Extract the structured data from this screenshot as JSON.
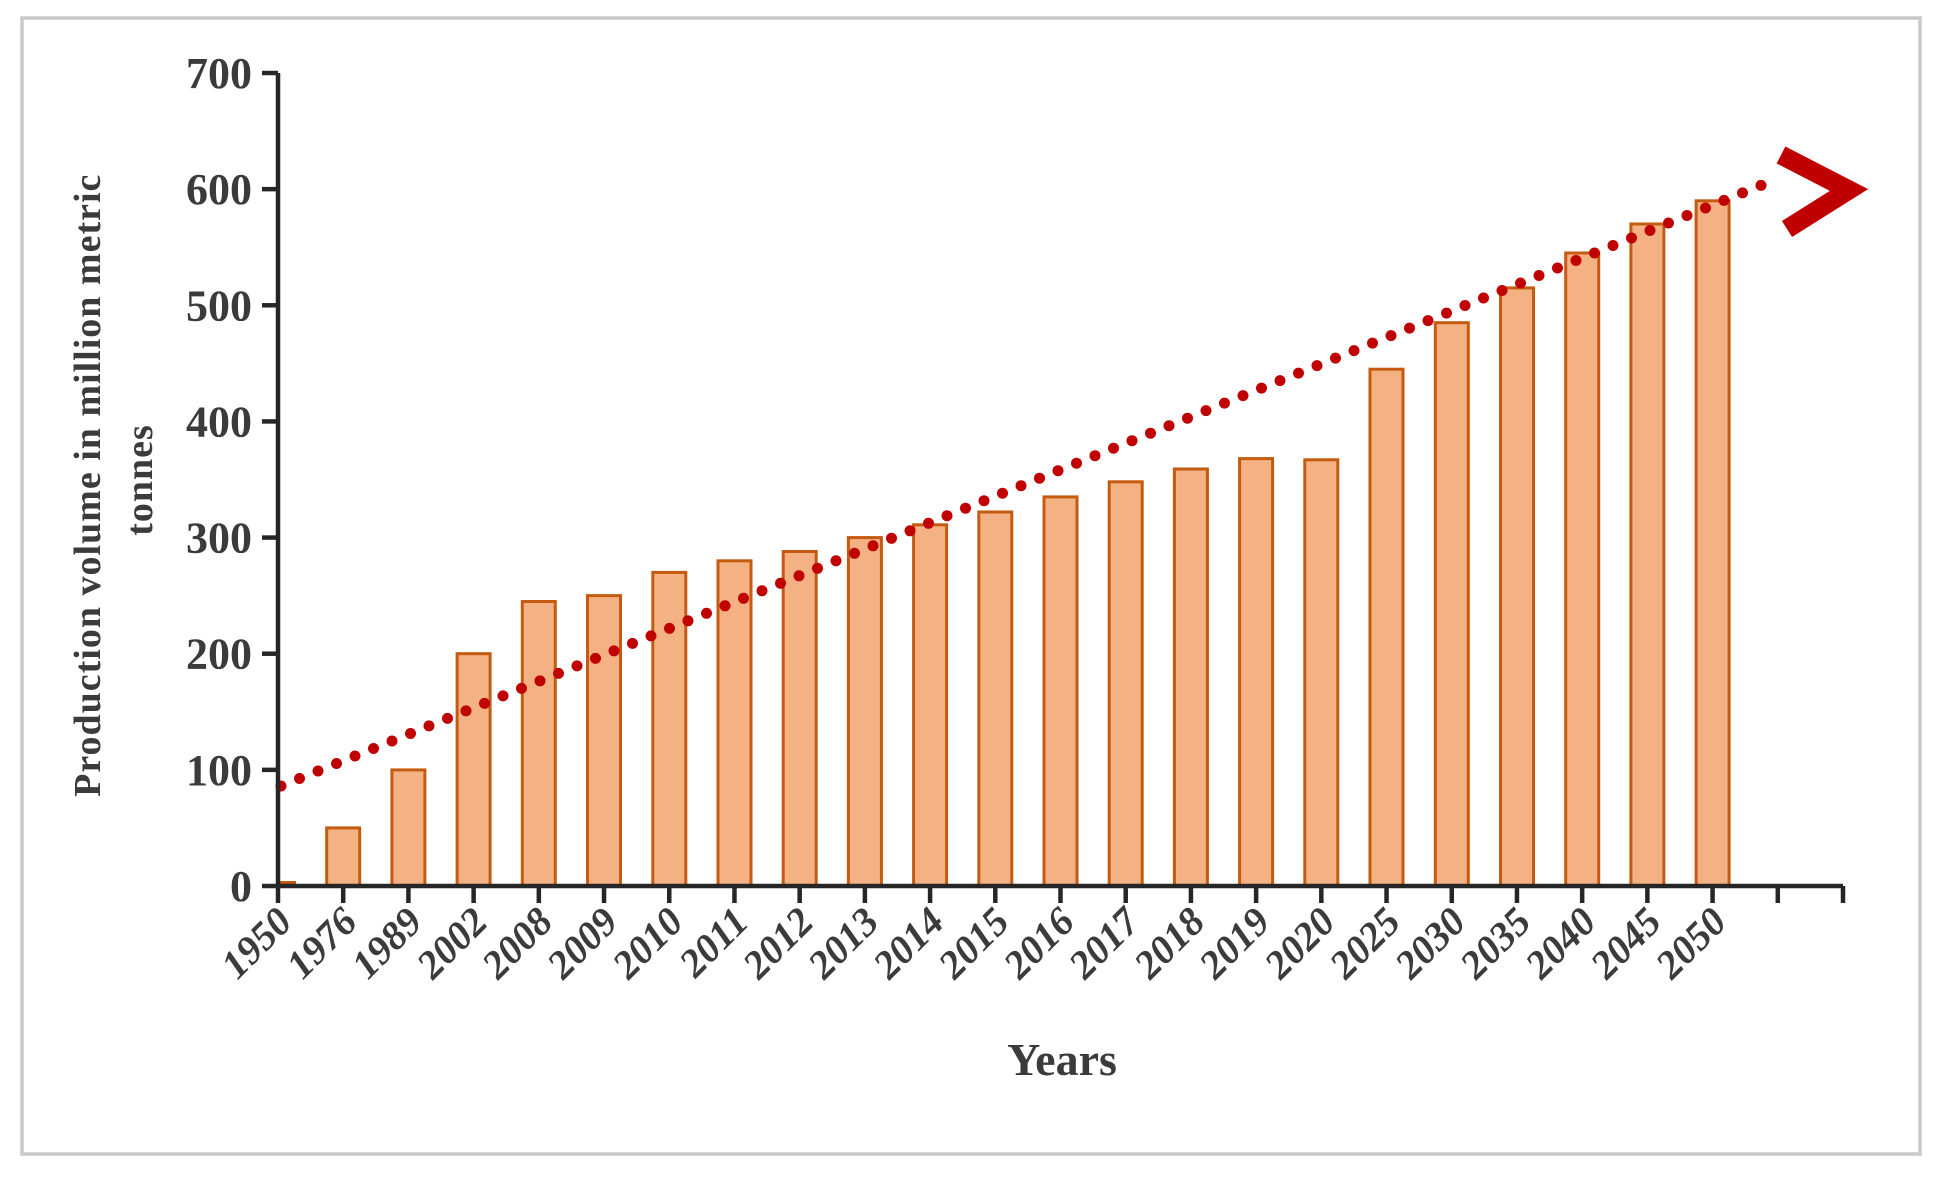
{
  "figure": {
    "background_color": "#ffffff",
    "frame_color": "#c9c9c9"
  },
  "chart_data": {
    "type": "bar",
    "title": "",
    "xlabel": "Years",
    "ylabel": "Production volume in million metric tonnes",
    "ylabel_lines": [
      "Production volume in million  metric",
      "tonnes"
    ],
    "categories": [
      "1950",
      "1976",
      "1989",
      "2002",
      "2008",
      "2009",
      "2010",
      "2011",
      "2012",
      "2013",
      "2014",
      "2015",
      "2016",
      "2017",
      "2018",
      "2019",
      "2020",
      "2025",
      "2030",
      "2035",
      "2040",
      "2045",
      "2050"
    ],
    "values": [
      3,
      50,
      100,
      200,
      245,
      250,
      270,
      280,
      288,
      300,
      311,
      322,
      335,
      348,
      359,
      368,
      367,
      445,
      485,
      515,
      545,
      570,
      590
    ],
    "ylim": [
      0,
      700
    ],
    "ytick_step": 100,
    "yticks": [
      0,
      100,
      200,
      300,
      400,
      500,
      600,
      700
    ],
    "grid": false,
    "legend_position": "none",
    "bar_fill_color": "#f4b183",
    "bar_border_color": "#c55a11",
    "axis_color": "#262626",
    "tick_label_color": "#3b3b3b",
    "trendline": {
      "style": "dotted",
      "color": "#c00000",
      "arrow": true,
      "start_value_at_1950": 85,
      "end_value_past_2050": 600,
      "description": "Straight red dotted trend line rising from ~85 at 1950 to ~600 beyond 2050, ending in a bold red chevron arrowhead pointing up-right"
    }
  }
}
